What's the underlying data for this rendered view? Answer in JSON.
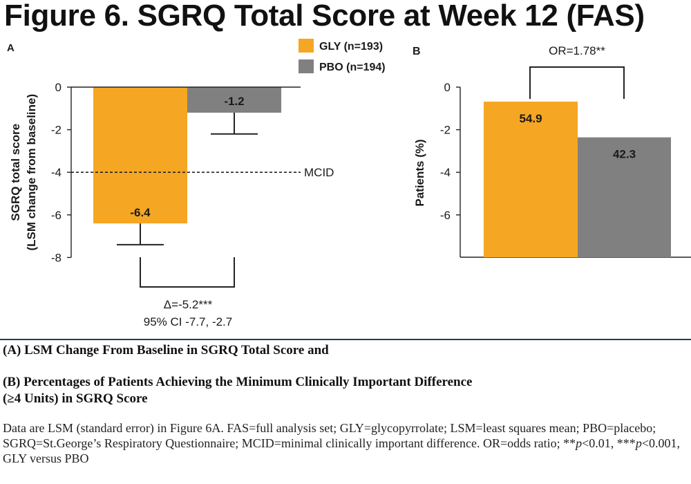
{
  "figure_title": "Figure 6. SGRQ Total Score at Week 12 (FAS)",
  "colors": {
    "gly": "#F5A623",
    "pbo": "#808080",
    "separator": "#1f3d5c"
  },
  "legend": [
    {
      "label": "GLY (n=193)",
      "color": "#F5A623"
    },
    {
      "label": "PBO (n=194)",
      "color": "#808080"
    }
  ],
  "panels": {
    "a": {
      "letter": "A",
      "mcid_label": "MCID",
      "delta_text": "Δ=-5.2***",
      "ci_text": "95% CI -7.7, -2.7"
    },
    "b": {
      "letter": "B",
      "or_text": "OR=1.78**"
    }
  },
  "caption": {
    "line_a": "(A) LSM Change From Baseline in SGRQ Total Score and",
    "line_b1": "(B) Percentages of Patients Achieving the Minimum Clinically Important Difference",
    "line_b2": "(≥4 Units) in SGRQ Score"
  },
  "footnote": {
    "t1": "Data are LSM (standard error) in Figure 6A. FAS=full analysis set; GLY=glycopyrrolate; LSM=least squares mean; PBO=placebo; SGRQ=St.George’s Respiratory Questionnaire; MCID=minimal clinically important difference. OR=odds ratio; **",
    "p": "p",
    "t2": "<0.01, ***",
    "t3": "<0.001, GLY versus PBO"
  },
  "chart_data": [
    {
      "panel": "A",
      "type": "bar",
      "ylabel": "SGRQ total score (LSM change from baseline)",
      "ylim": [
        -8,
        0
      ],
      "yticks": [
        "0",
        "-2",
        "-4",
        "-6",
        "-8"
      ],
      "categories": [
        "GLY (n=193)",
        "PBO (n=194)"
      ],
      "values": [
        -6.4,
        -1.2
      ],
      "value_labels": [
        "-6.4",
        "-1.2"
      ],
      "errors": [
        1.0,
        1.0
      ],
      "reference_line": {
        "y": -4,
        "label": "MCID"
      },
      "annotation": [
        "Δ=-5.2***",
        "95% CI -7.7, -2.7"
      ]
    },
    {
      "panel": "B",
      "type": "bar",
      "ylabel": "Patients (%)",
      "yticks": [
        "0",
        "-2",
        "-4",
        "-6"
      ],
      "categories": [
        "GLY (n=193)",
        "PBO (n=194)"
      ],
      "values": [
        54.9,
        42.3
      ],
      "value_labels": [
        "54.9",
        "42.3"
      ],
      "annotation": "OR=1.78**"
    }
  ]
}
